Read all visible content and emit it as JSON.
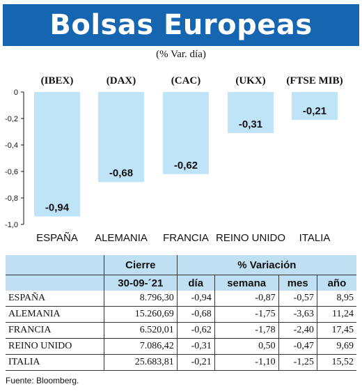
{
  "title": "Bolsas Europeas",
  "subtitle": "(% Var. día)",
  "chart_data": {
    "type": "bar",
    "categories": [
      "ESPAÑA",
      "ALEMANIA",
      "FRANCIA",
      "REINO UNIDO",
      "ITALIA"
    ],
    "index_labels": [
      "(IBEX)",
      "(DAX)",
      "(CAC)",
      "(UKX)",
      "(FTSE MIB)"
    ],
    "values": [
      -0.94,
      -0.68,
      -0.62,
      -0.31,
      -0.21
    ],
    "value_labels": [
      "-0,94",
      "-0,68",
      "-0,62",
      "-0,31",
      "-0,21"
    ],
    "ylim": [
      -1.0,
      0
    ],
    "yticks": [
      0,
      -0.2,
      -0.4,
      -0.6,
      -0.8,
      -1.0
    ],
    "ytick_labels": [
      "0",
      "-0,2",
      "-0,4",
      "-0,6",
      "-0,8",
      "-1,0"
    ],
    "bar_color": "#bfe3f7",
    "grid": false
  },
  "table": {
    "header_cierre": "Cierre",
    "header_variacion": "% Variación",
    "header_date": "30-09-´21",
    "header_cols": [
      "día",
      "semana",
      "mes",
      "año"
    ],
    "rows": [
      {
        "name": "ESPAÑA",
        "cierre": "8.796,30",
        "dia": "-0,94",
        "semana": "-0,87",
        "mes": "-0,57",
        "anio": "8,95"
      },
      {
        "name": "ALEMANIA",
        "cierre": "15.260,69",
        "dia": "-0,68",
        "semana": "-1,75",
        "mes": "-3,63",
        "anio": "11,24"
      },
      {
        "name": "FRANCIA",
        "cierre": "6.520,01",
        "dia": "-0,62",
        "semana": "-1,78",
        "mes": "-2,40",
        "anio": "17,45"
      },
      {
        "name": "REINO UNIDO",
        "cierre": "7.086,42",
        "dia": "-0,31",
        "semana": "0,50",
        "mes": "-0,47",
        "anio": "9,69"
      },
      {
        "name": "ITALIA",
        "cierre": "25.683,81",
        "dia": "-0,21",
        "semana": "-1,10",
        "mes": "-1,25",
        "anio": "15,52"
      }
    ]
  },
  "source": "Fuente: Bloomberg.",
  "colors": {
    "title_bg": "#1565b0",
    "header_bg": "#bfe0f2"
  }
}
